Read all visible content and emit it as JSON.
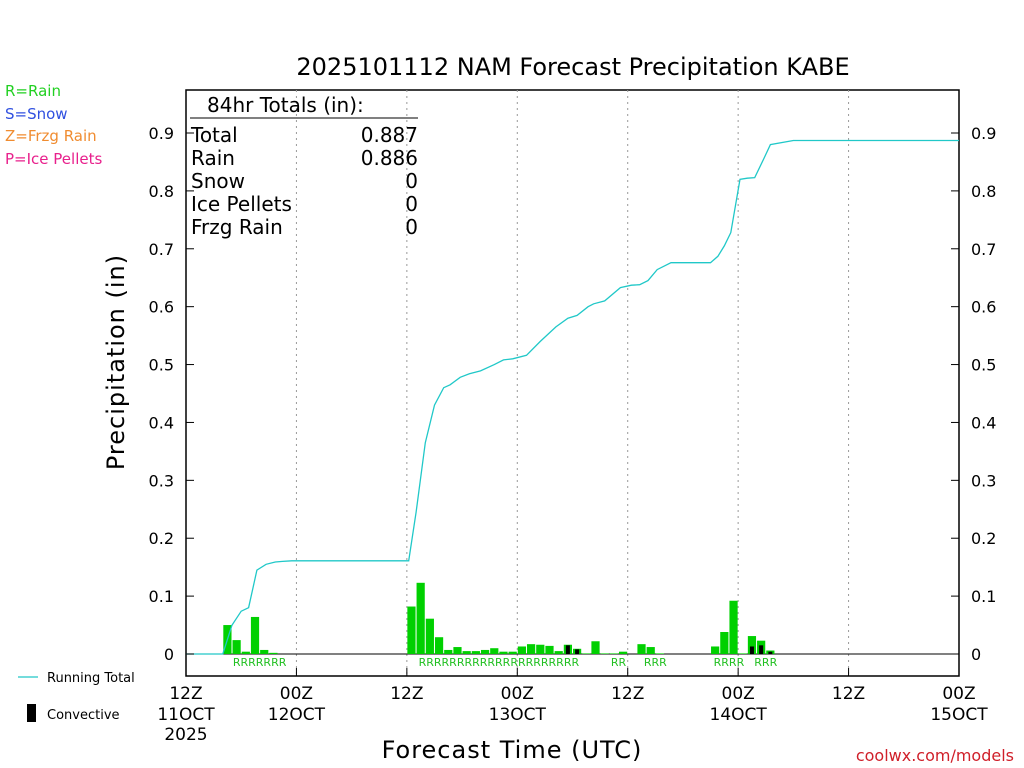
{
  "chart_data": {
    "type": "bar",
    "title": "2025101112 NAM Forecast Precipitation KABE",
    "ylabel": "Precipitation (in)",
    "xlabel": "Forecast Time (UTC)",
    "ylim": [
      -0.04,
      0.98
    ],
    "xlim_hours": [
      0,
      84
    ],
    "yticks": [
      "0",
      "0.1",
      "0.2",
      "0.3",
      "0.4",
      "0.5",
      "0.6",
      "0.7",
      "0.8",
      "0.9"
    ],
    "ytick_values": [
      0,
      0.1,
      0.2,
      0.3,
      0.4,
      0.5,
      0.6,
      0.7,
      0.8,
      0.9
    ],
    "xticks": [
      {
        "hour": 0,
        "label": "12Z",
        "date": "11OCT",
        "year": "2025"
      },
      {
        "hour": 12,
        "label": "00Z",
        "date": "12OCT",
        "year": ""
      },
      {
        "hour": 24,
        "label": "12Z",
        "date": "",
        "year": ""
      },
      {
        "hour": 36,
        "label": "00Z",
        "date": "13OCT",
        "year": ""
      },
      {
        "hour": 48,
        "label": "12Z",
        "date": "",
        "year": ""
      },
      {
        "hour": 60,
        "label": "00Z",
        "date": "14OCT",
        "year": ""
      },
      {
        "hour": 72,
        "label": "12Z",
        "date": "",
        "year": ""
      },
      {
        "hour": 84,
        "label": "00Z",
        "date": "15OCT",
        "year": ""
      }
    ],
    "bar_hours": [
      5,
      6,
      7,
      8,
      9,
      10,
      25,
      26,
      27,
      28,
      29,
      30,
      31,
      32,
      33,
      34,
      35,
      36,
      37,
      38,
      39,
      40,
      41,
      42,
      43,
      44,
      45,
      46,
      47,
      48,
      50,
      51,
      52,
      58,
      59,
      60,
      61,
      62,
      63,
      64
    ],
    "series": [
      {
        "name": "Precipitation",
        "values": [
          0.05,
          0.024,
          0.004,
          0.064,
          0.007,
          0.002,
          0.082,
          0.123,
          0.061,
          0.029,
          0.007,
          0.012,
          0.005,
          0.005,
          0.007,
          0.01,
          0.004,
          0.004,
          0.013,
          0.017,
          0.016,
          0.014,
          0.005,
          0.016,
          0.009,
          0.001,
          0.022,
          0.001,
          0.001,
          0.004,
          0.017,
          0.012,
          0.001,
          0.013,
          0.038,
          0.092,
          0.001,
          0.031,
          0.023,
          0.006
        ]
      },
      {
        "name": "Convective",
        "values": [
          0,
          0,
          0,
          0,
          0,
          0,
          0,
          0,
          0,
          0,
          0,
          0,
          0,
          0,
          0,
          0,
          0,
          0,
          0,
          0,
          0,
          0,
          0,
          0.015,
          0.008,
          0,
          0,
          0,
          0,
          0,
          0,
          0,
          0,
          0,
          0,
          0,
          0,
          0.013,
          0.015,
          0.004
        ]
      },
      {
        "name": "Running Total",
        "x": [
          0,
          4,
          5,
          6,
          6.8,
          7.7,
          8.7,
          9.7,
          10.5,
          11.5,
          12.5,
          24.2,
          25,
          26,
          27,
          28,
          28.7,
          29.8,
          30.8,
          32,
          33.5,
          34.5,
          35.5,
          37,
          38.5,
          40.2,
          41.5,
          42.5,
          43.7,
          44.3,
          45.5,
          47.2,
          48.4,
          49.3,
          50.2,
          51.2,
          52.7,
          56.2,
          57,
          57.8,
          58.5,
          59.2,
          60.2,
          61,
          61.8,
          62.8,
          63.5,
          66,
          84
        ],
        "values": [
          0,
          0,
          0.05,
          0.074,
          0.08,
          0.145,
          0.155,
          0.159,
          0.16,
          0.161,
          0.161,
          0.161,
          0.245,
          0.365,
          0.43,
          0.46,
          0.465,
          0.478,
          0.484,
          0.489,
          0.5,
          0.508,
          0.51,
          0.516,
          0.54,
          0.565,
          0.58,
          0.585,
          0.6,
          0.605,
          0.61,
          0.633,
          0.637,
          0.638,
          0.645,
          0.664,
          0.676,
          0.676,
          0.676,
          0.687,
          0.705,
          0.728,
          0.82,
          0.822,
          0.823,
          0.856,
          0.88,
          0.887,
          0.887
        ]
      }
    ],
    "ptype_labels": [
      {
        "hour": 8,
        "text": "RRRRRRR"
      },
      {
        "hour": 34,
        "text": "RRRRRRRRRRRRRRRRRRRRR"
      },
      {
        "hour": 47,
        "text": "RR"
      },
      {
        "hour": 51,
        "text": "RRR"
      },
      {
        "hour": 59,
        "text": "RRRR"
      },
      {
        "hour": 63,
        "text": "RRR"
      }
    ]
  },
  "totals": {
    "heading": "84hr Totals (in):",
    "rows": [
      {
        "label": "Total",
        "value": "0.887"
      },
      {
        "label": "Rain",
        "value": "0.886"
      },
      {
        "label": "Snow",
        "value": "0"
      },
      {
        "label": "Ice Pellets",
        "value": "0"
      },
      {
        "label": "Frzg Rain",
        "value": "0"
      }
    ]
  },
  "ptype_legend": [
    {
      "text": "R=Rain",
      "color": "#22d022"
    },
    {
      "text": "S=Snow",
      "color": "#3050e0"
    },
    {
      "text": "Z=Frzg Rain",
      "color": "#f08c30"
    },
    {
      "text": "P=Ice Pellets",
      "color": "#e8208c"
    }
  ],
  "line_legend": {
    "running_total": "Running Total",
    "convective": "Convective"
  },
  "credit": "coolwx.com/models",
  "colors": {
    "bar": "#00d000",
    "convective": "#000000",
    "line": "#20c8c8",
    "ptype_label": "#22c022",
    "credit": "#d0202a"
  }
}
